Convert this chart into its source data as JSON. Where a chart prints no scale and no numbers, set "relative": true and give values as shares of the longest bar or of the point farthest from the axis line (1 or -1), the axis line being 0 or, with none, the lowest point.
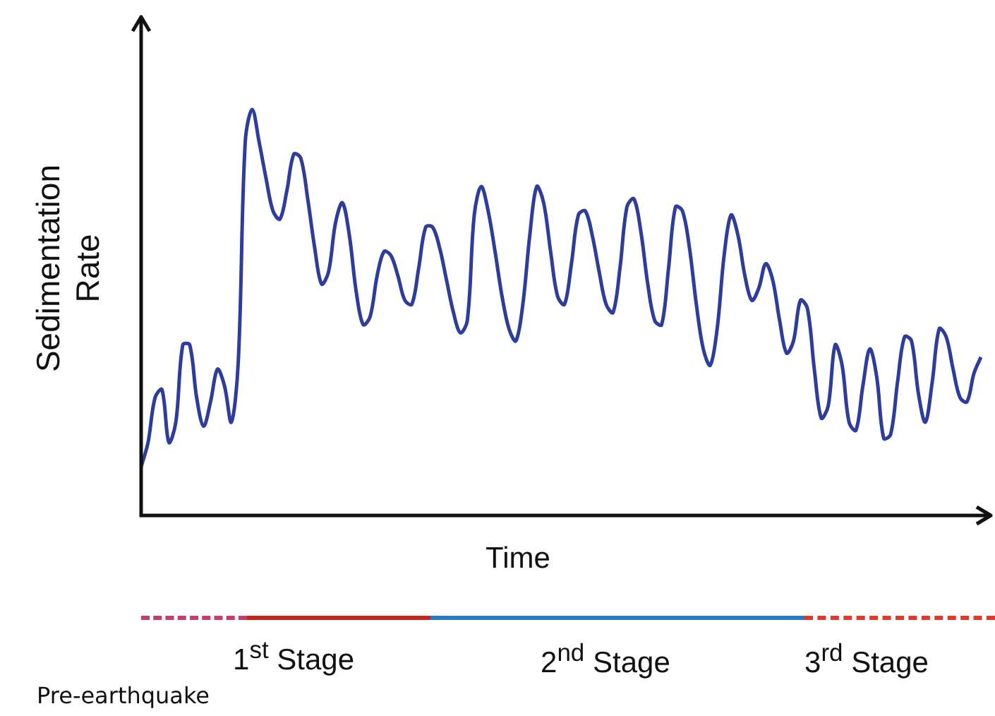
{
  "chart_data": {
    "type": "line",
    "relative": true,
    "xlabel": "Time",
    "ylabel": "Sedimentation Rate",
    "marker": "none",
    "categories": [
      null,
      null,
      null,
      null,
      null,
      null,
      null,
      null,
      null,
      null,
      null,
      null,
      null,
      null,
      null,
      null,
      null,
      null,
      null,
      null,
      null,
      null,
      null,
      null,
      null,
      null,
      null,
      null,
      null,
      null,
      null,
      null,
      null,
      null,
      null,
      null,
      null,
      null,
      null,
      null,
      null,
      null,
      null,
      null,
      null,
      null,
      null,
      null,
      null,
      null,
      null,
      null,
      null,
      null,
      null,
      null,
      null,
      null,
      null,
      null,
      null,
      null,
      null,
      null,
      null,
      null,
      null,
      null,
      null,
      null,
      null,
      null,
      null,
      null,
      null,
      null,
      null,
      null,
      null,
      null,
      null,
      null,
      null,
      null,
      null,
      null,
      null,
      null,
      null,
      null,
      null,
      null,
      null,
      null,
      null,
      null,
      null,
      null,
      null,
      null,
      null,
      null,
      null,
      null,
      null,
      null,
      null,
      null,
      null,
      null,
      null,
      null,
      null,
      null,
      null,
      null,
      null,
      null,
      null,
      null,
      null,
      null
    ],
    "series": [
      {
        "color": "#2e3c9c",
        "values": [
          0.12,
          0.18,
          0.29,
          0.31,
          0.18,
          0.23,
          0.42,
          0.42,
          0.29,
          0.22,
          0.28,
          0.36,
          0.32,
          0.23,
          0.38,
          0.92,
          1,
          0.92,
          0.83,
          0.75,
          0.73,
          0.8,
          0.89,
          0.88,
          0.78,
          0.66,
          0.57,
          0.6,
          0.72,
          0.77,
          0.69,
          0.55,
          0.47,
          0.49,
          0.59,
          0.65,
          0.64,
          0.59,
          0.53,
          0.52,
          0.61,
          0.71,
          0.71,
          0.66,
          0.58,
          0.5,
          0.45,
          0.48,
          0.74,
          0.81,
          0.75,
          0.65,
          0.54,
          0.46,
          0.43,
          0.52,
          0.69,
          0.81,
          0.77,
          0.65,
          0.54,
          0.52,
          0.62,
          0.74,
          0.75,
          0.69,
          0.6,
          0.52,
          0.5,
          0.61,
          0.76,
          0.78,
          0.7,
          0.57,
          0.48,
          0.47,
          0.61,
          0.76,
          0.75,
          0.66,
          0.52,
          0.41,
          0.37,
          0.46,
          0.64,
          0.74,
          0.69,
          0.59,
          0.53,
          0.56,
          0.62,
          0.58,
          0.48,
          0.4,
          0.43,
          0.53,
          0.51,
          0.36,
          0.24,
          0.27,
          0.42,
          0.37,
          0.23,
          0.21,
          0.32,
          0.41,
          0.34,
          0.19,
          0.2,
          0.33,
          0.44,
          0.43,
          0.3,
          0.23,
          0.33,
          0.46,
          0.44,
          0.36,
          0.29,
          0.28,
          0.35,
          0.39
        ]
      }
    ],
    "annotations": [
      "1$^{st}$ Stage",
      "2$^{nd}$ Stage",
      "3$^{rd}$ Stage",
      "Pre-earthquake"
    ]
  }
}
